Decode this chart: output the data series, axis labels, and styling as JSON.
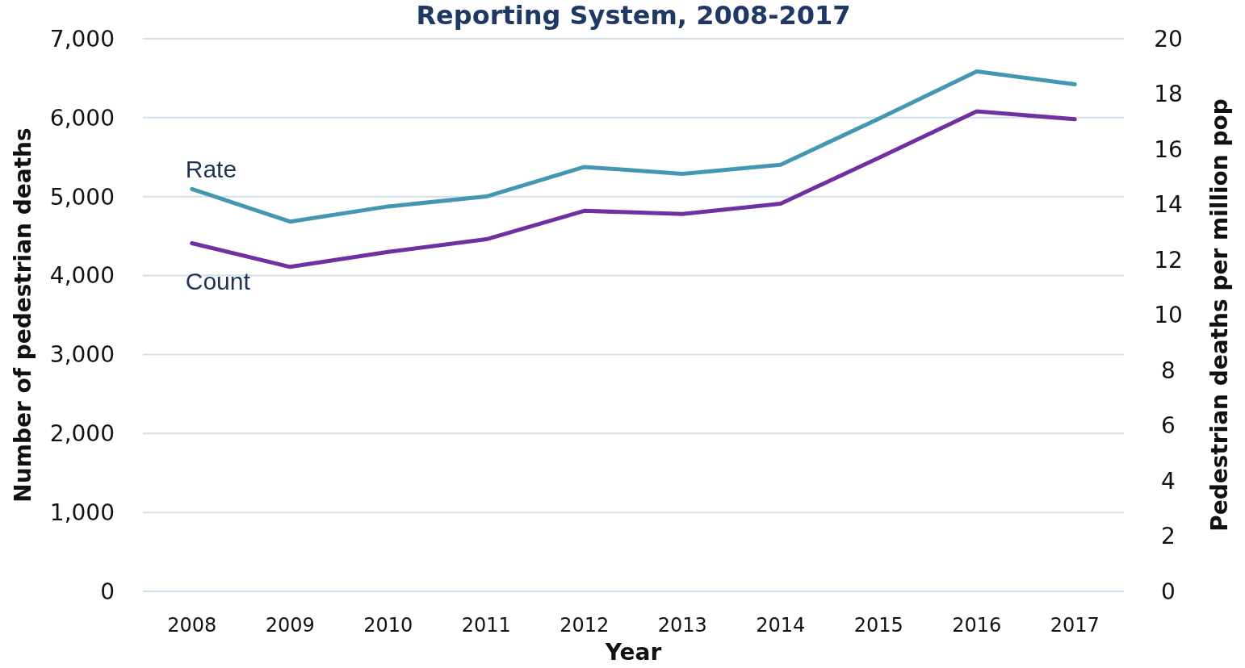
{
  "chart_data": {
    "type": "line",
    "title": "Reporting System, 2008-2017",
    "xlabel": "Year",
    "ylabel": "Number of pedestrian deaths",
    "y2label": "Pedestrian deaths per million pop",
    "categories": [
      "2008",
      "2009",
      "2010",
      "2011",
      "2012",
      "2013",
      "2014",
      "2015",
      "2016",
      "2017"
    ],
    "series": [
      {
        "name": "Rate",
        "color": "#4596b0",
        "axis": "y2",
        "values": [
          14.56,
          13.38,
          13.93,
          14.29,
          15.36,
          15.11,
          15.44,
          17.1,
          18.82,
          18.35
        ]
      },
      {
        "name": "Count",
        "color": "#7030a0",
        "values": [
          4410,
          4110,
          4300,
          4460,
          4820,
          4780,
          4910,
          5490,
          6080,
          5980
        ]
      }
    ],
    "ylim": [
      0,
      7000
    ],
    "yticks": [
      {
        "value": 0,
        "label": "0"
      },
      {
        "value": 1000,
        "label": "1,000"
      },
      {
        "value": 2000,
        "label": "2,000"
      },
      {
        "value": 3000,
        "label": "3,000"
      },
      {
        "value": 4000,
        "label": "4,000"
      },
      {
        "value": 5000,
        "label": "5,000"
      },
      {
        "value": 6000,
        "label": "6,000"
      },
      {
        "value": 7000,
        "label": "7,000"
      }
    ],
    "y2lim": [
      0,
      20
    ],
    "y2ticks": [
      0,
      2,
      4,
      6,
      8,
      10,
      12,
      14,
      16,
      18,
      20
    ],
    "grid": "y",
    "marker": "none",
    "line_style": "solid"
  }
}
